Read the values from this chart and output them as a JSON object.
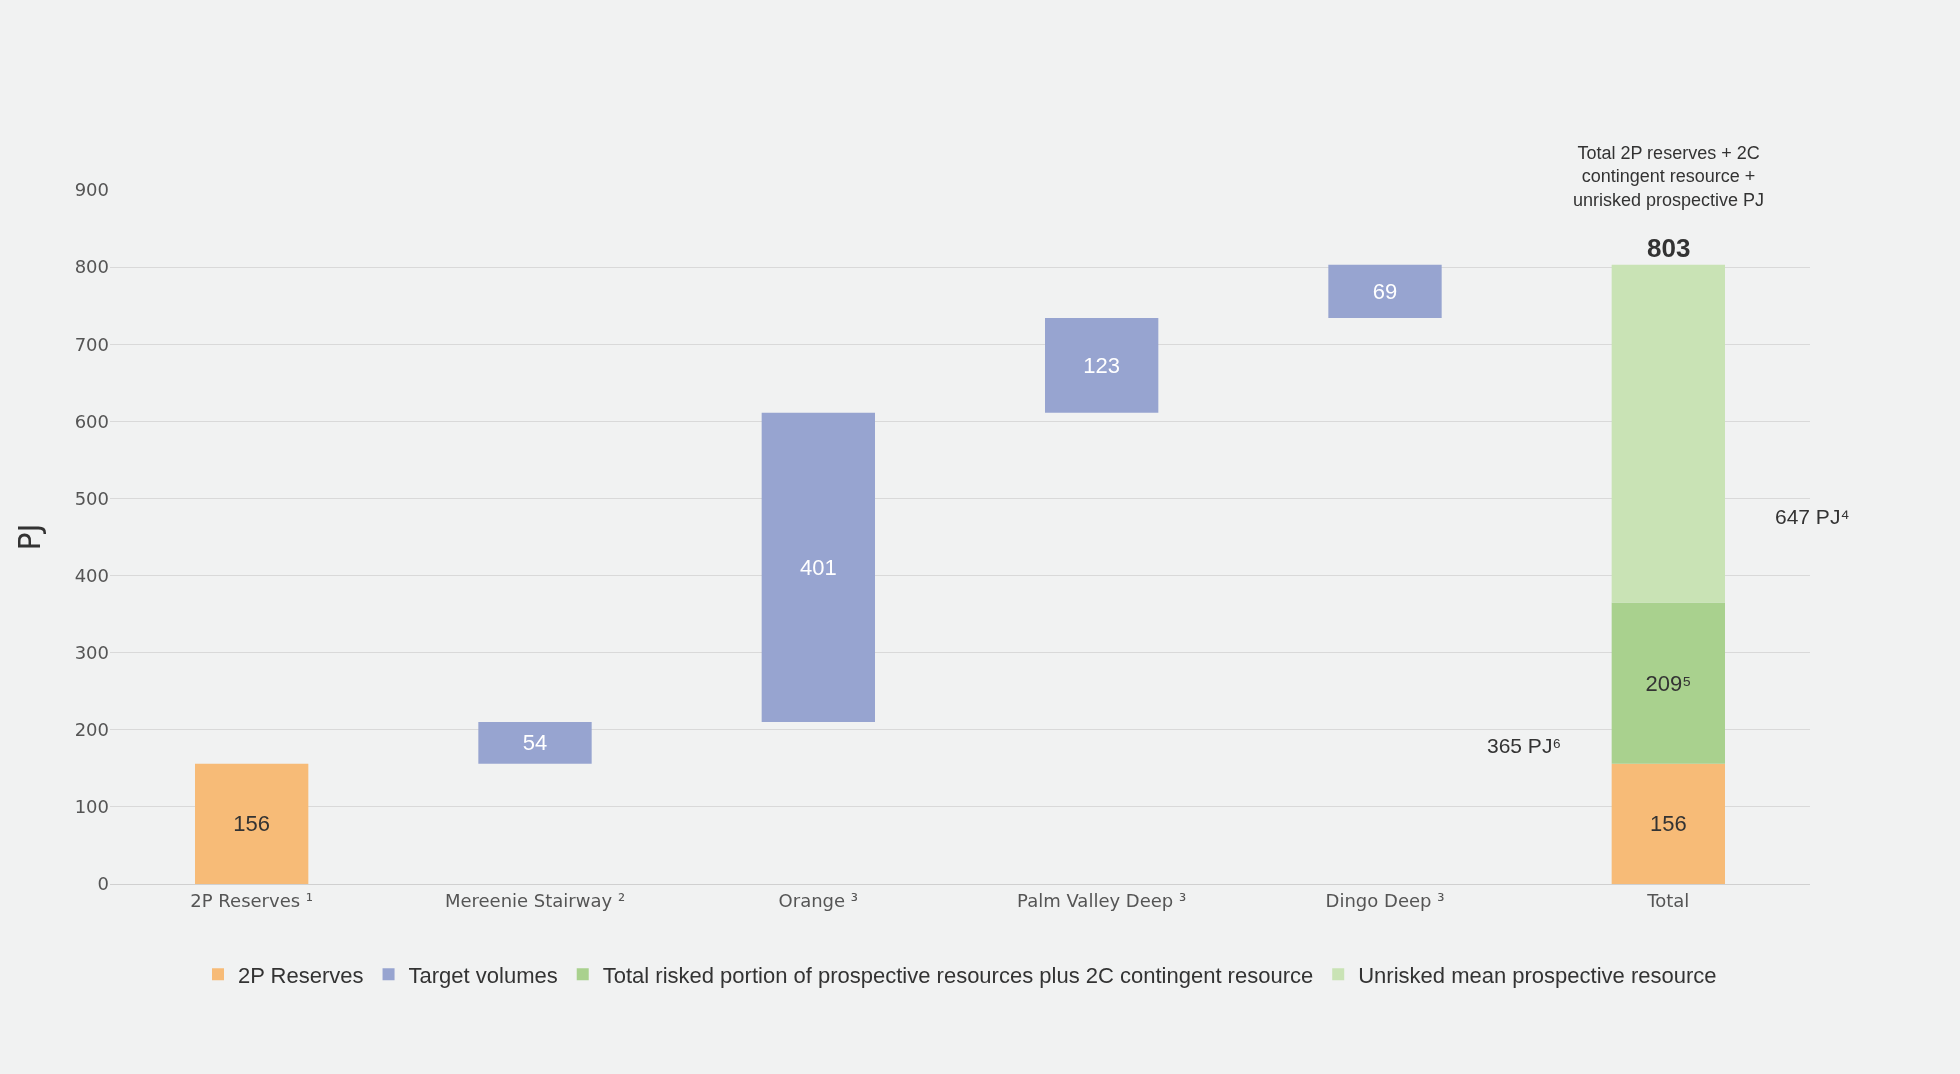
{
  "chart_data": {
    "type": "bar",
    "categories": [
      "2P Reserves ¹",
      "Mereenie Stairway ²",
      "Orange ³",
      "Palm Valley Deep ³",
      "Dingo Deep ³",
      "Total"
    ],
    "ylabel": "PJ",
    "ylim": [
      0,
      900
    ],
    "yticks": [
      0,
      100,
      200,
      300,
      400,
      500,
      600,
      700,
      800,
      900
    ],
    "grid": "y",
    "legend": "bottom",
    "series": [
      {
        "name": "2P Reserves",
        "color": "#f7bb77",
        "values": [
          156,
          null,
          null,
          null,
          null,
          156
        ],
        "base": [
          0,
          null,
          null,
          null,
          null,
          0
        ],
        "value_labels": [
          "156",
          null,
          null,
          null,
          null,
          "156"
        ]
      },
      {
        "name": "Target volumes",
        "color": "#97a4d0",
        "values": [
          null,
          54,
          401,
          123,
          69,
          null
        ],
        "base": [
          null,
          156,
          210,
          611,
          734,
          null
        ],
        "value_labels": [
          null,
          "54",
          "401",
          "123",
          "69",
          null
        ]
      },
      {
        "name": "Total risked portion of prospective resources plus 2C contingent resource",
        "color": "#a9d18e",
        "values": [
          null,
          null,
          null,
          null,
          null,
          209
        ],
        "base": [
          null,
          null,
          null,
          null,
          null,
          156
        ],
        "value_labels": [
          null,
          null,
          null,
          null,
          null,
          "209⁵"
        ]
      },
      {
        "name": "Unrisked mean prospective resource",
        "color": "#c9e3b5",
        "values": [
          null,
          null,
          null,
          null,
          null,
          438
        ],
        "base": [
          null,
          null,
          null,
          null,
          null,
          365
        ]
      }
    ],
    "annotations": [
      {
        "text": "803",
        "x": "Total",
        "y": 803
      },
      "Total 2P reserves + 2C contingent resource + unrisked prospective PJ",
      "365 PJ⁶",
      "647 PJ⁴"
    ]
  }
}
